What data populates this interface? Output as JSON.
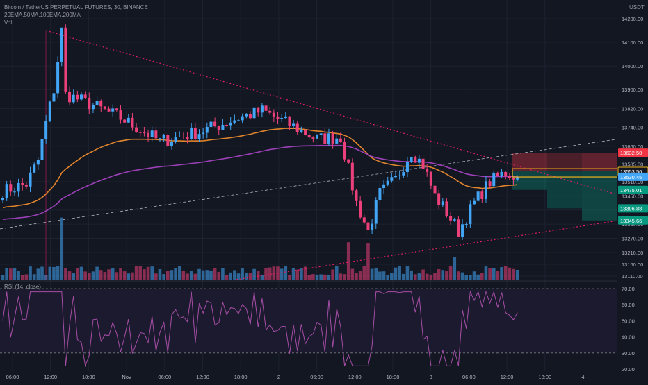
{
  "header": {
    "title": "Bitcoin / TetherUS PERPETUAL FUTURES, 30, BINANCE",
    "indicators": "20EMA,50MA,100EMA,200MA",
    "volume": "Vol",
    "currency": "USDT"
  },
  "rsi_panel": {
    "label": "RSI (14, close)"
  },
  "colors": {
    "background": "#131722",
    "candle_up": "#42a5f5",
    "candle_down": "#ec407a",
    "ema100": "#e0842d",
    "ma200": "#9c40b8",
    "trendline": "#e91e63",
    "rsi_line": "#a64ea6",
    "stop_zone": "#f23645",
    "target_zone": "#089981",
    "entry_box": "#f0b41c"
  },
  "chart_data": [
    {
      "type": "candlestick",
      "title": "Bitcoin / TetherUS PERPETUAL FUTURES, 30, BINANCE",
      "y_axis": {
        "ticks": [
          14200,
          14100,
          14000,
          13900,
          13820,
          13740,
          13660,
          13585,
          13510,
          13450,
          13390,
          13330,
          13270,
          13210,
          13160,
          13110
        ],
        "ylim": [
          13110,
          14230
        ]
      },
      "x_axis": {
        "ticks": [
          "06:00",
          "12:00",
          "18:00",
          "Nov",
          "06:00",
          "12:00",
          "18:00",
          "2",
          "06:00",
          "12:00",
          "18:00",
          "3",
          "06:00",
          "12:00",
          "18:00",
          "4"
        ]
      },
      "price_labels": [
        {
          "text": "13632.50",
          "kind": "stop"
        },
        {
          "text": "13553.56",
          "kind": "entry"
        },
        {
          "text": "13530.45",
          "kind": "last"
        },
        {
          "text": "13475.01",
          "kind": "target"
        },
        {
          "text": "13396.88",
          "kind": "target"
        },
        {
          "text": "13345.66",
          "kind": "target"
        }
      ],
      "key_levels": {
        "period_high": 14150,
        "period_low": 13300,
        "last_price": 13530.45
      },
      "series": [
        {
          "name": "20EMA"
        },
        {
          "name": "50MA"
        },
        {
          "name": "100EMA"
        },
        {
          "name": "200MA"
        },
        {
          "name": "Vol"
        }
      ]
    },
    {
      "type": "line",
      "title": "RSI (14, close)",
      "y_axis": {
        "ticks": [
          70.0,
          60.0,
          50.0,
          40.0,
          30.0,
          20.0
        ],
        "ylim": [
          18,
          72
        ]
      },
      "bands": [
        30,
        70
      ],
      "series": [
        {
          "name": "RSI (14, close)"
        }
      ]
    }
  ]
}
